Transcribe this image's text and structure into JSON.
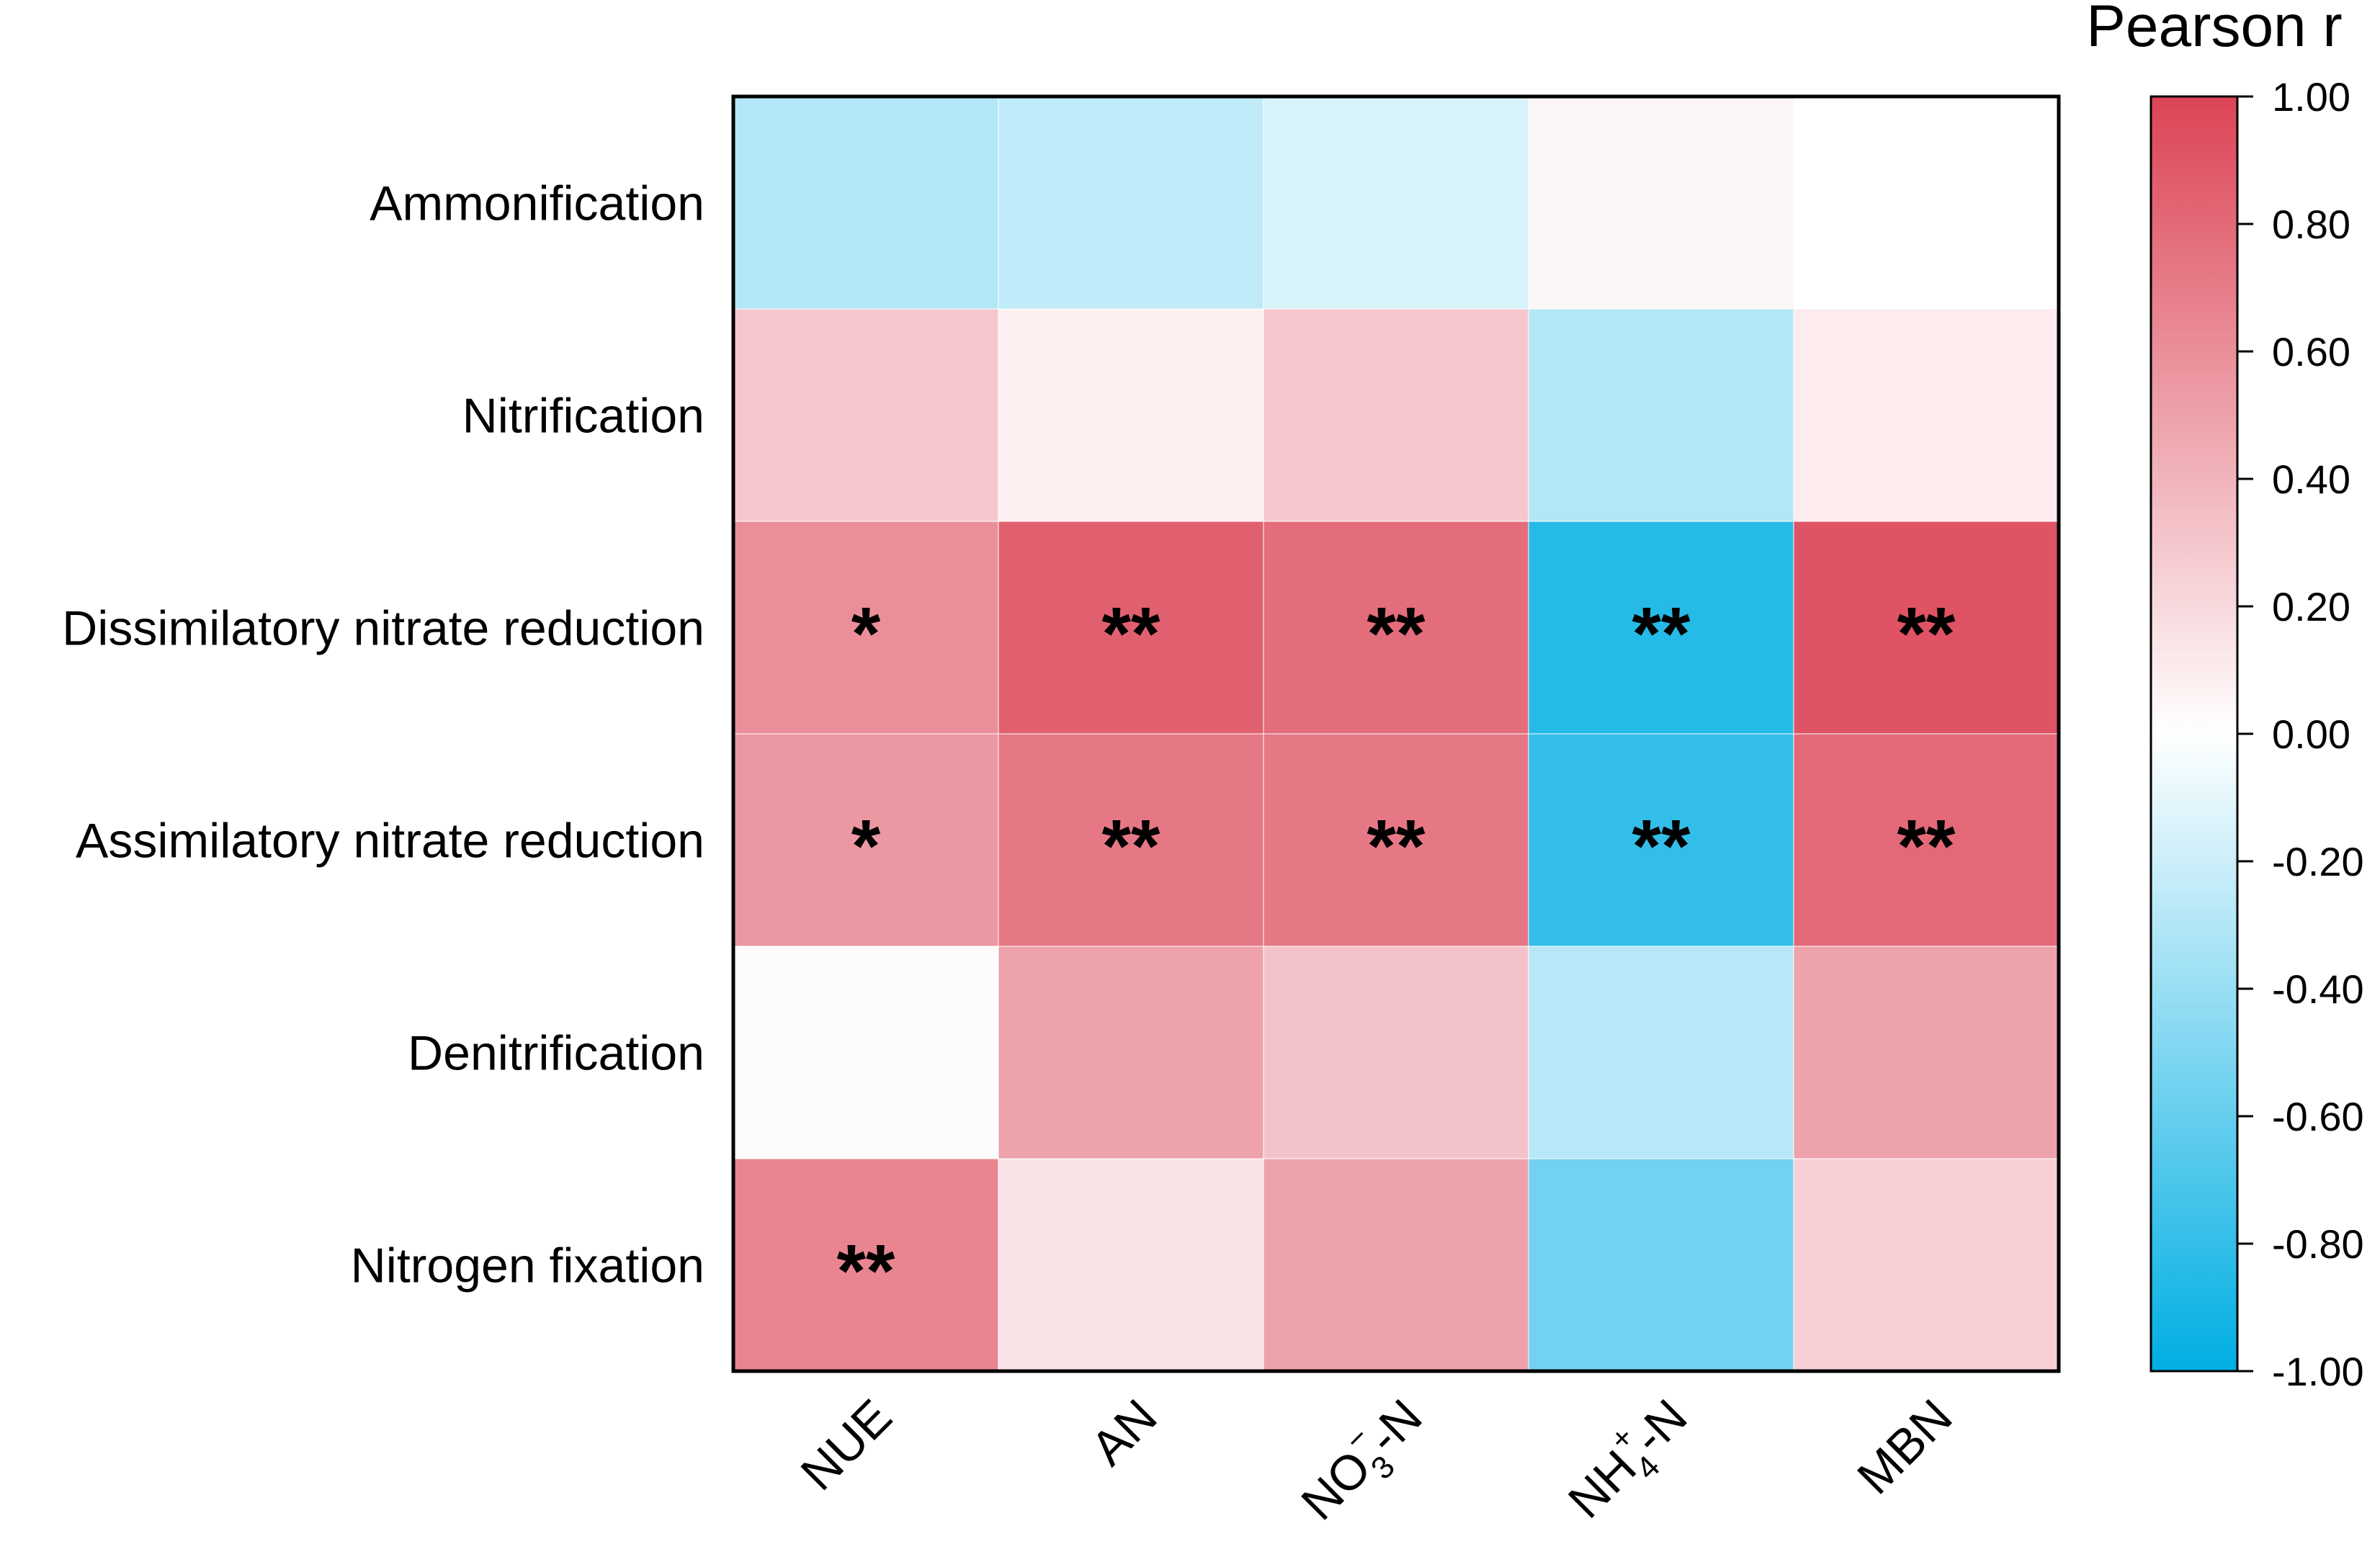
{
  "chart_data": {
    "type": "heatmap",
    "rows": [
      "Ammonification",
      "Nitrification",
      "Dissimilatory nitrate reduction",
      "Assimilatory nitrate reduction",
      "Denitrification",
      "Nitrogen fixation"
    ],
    "columns": [
      {
        "main": "NUE",
        "sub": "",
        "suffix": ""
      },
      {
        "main": "AN",
        "sub": "",
        "suffix": ""
      },
      {
        "main": "NO",
        "sub": "3",
        "sup": "−",
        "suffix": "-N"
      },
      {
        "main": "NH",
        "sub": "4",
        "sup": "+",
        "suffix": "-N"
      },
      {
        "main": "MBN",
        "sub": "",
        "suffix": ""
      }
    ],
    "values": [
      [
        -0.3,
        -0.25,
        -0.15,
        0.05,
        0.0
      ],
      [
        0.3,
        0.08,
        0.3,
        -0.3,
        0.1
      ],
      [
        0.6,
        0.85,
        0.78,
        -0.85,
        0.92
      ],
      [
        0.55,
        0.72,
        0.72,
        -0.8,
        0.8
      ],
      [
        0.02,
        0.5,
        0.32,
        -0.28,
        0.5
      ],
      [
        0.65,
        0.15,
        0.5,
        -0.55,
        0.25
      ]
    ],
    "significance": [
      [
        "",
        "",
        "",
        "",
        ""
      ],
      [
        "",
        "",
        "",
        "",
        ""
      ],
      [
        "*",
        "**",
        "**",
        "**",
        "**"
      ],
      [
        "*",
        "**",
        "**",
        "**",
        "**"
      ],
      [
        "",
        "",
        "",
        "",
        ""
      ],
      [
        "**",
        "",
        "",
        "",
        ""
      ]
    ],
    "colorbar": {
      "title": "Pearson r",
      "range": [
        -1.0,
        1.0
      ],
      "ticks": [
        "1.00",
        "0.80",
        "0.60",
        "0.40",
        "0.20",
        "0.00",
        "-0.20",
        "-0.40",
        "-0.60",
        "-0.80",
        "-1.00"
      ],
      "low_color": "#00aee3",
      "mid_color": "#ffffff",
      "high_color": "#dc4456"
    }
  }
}
